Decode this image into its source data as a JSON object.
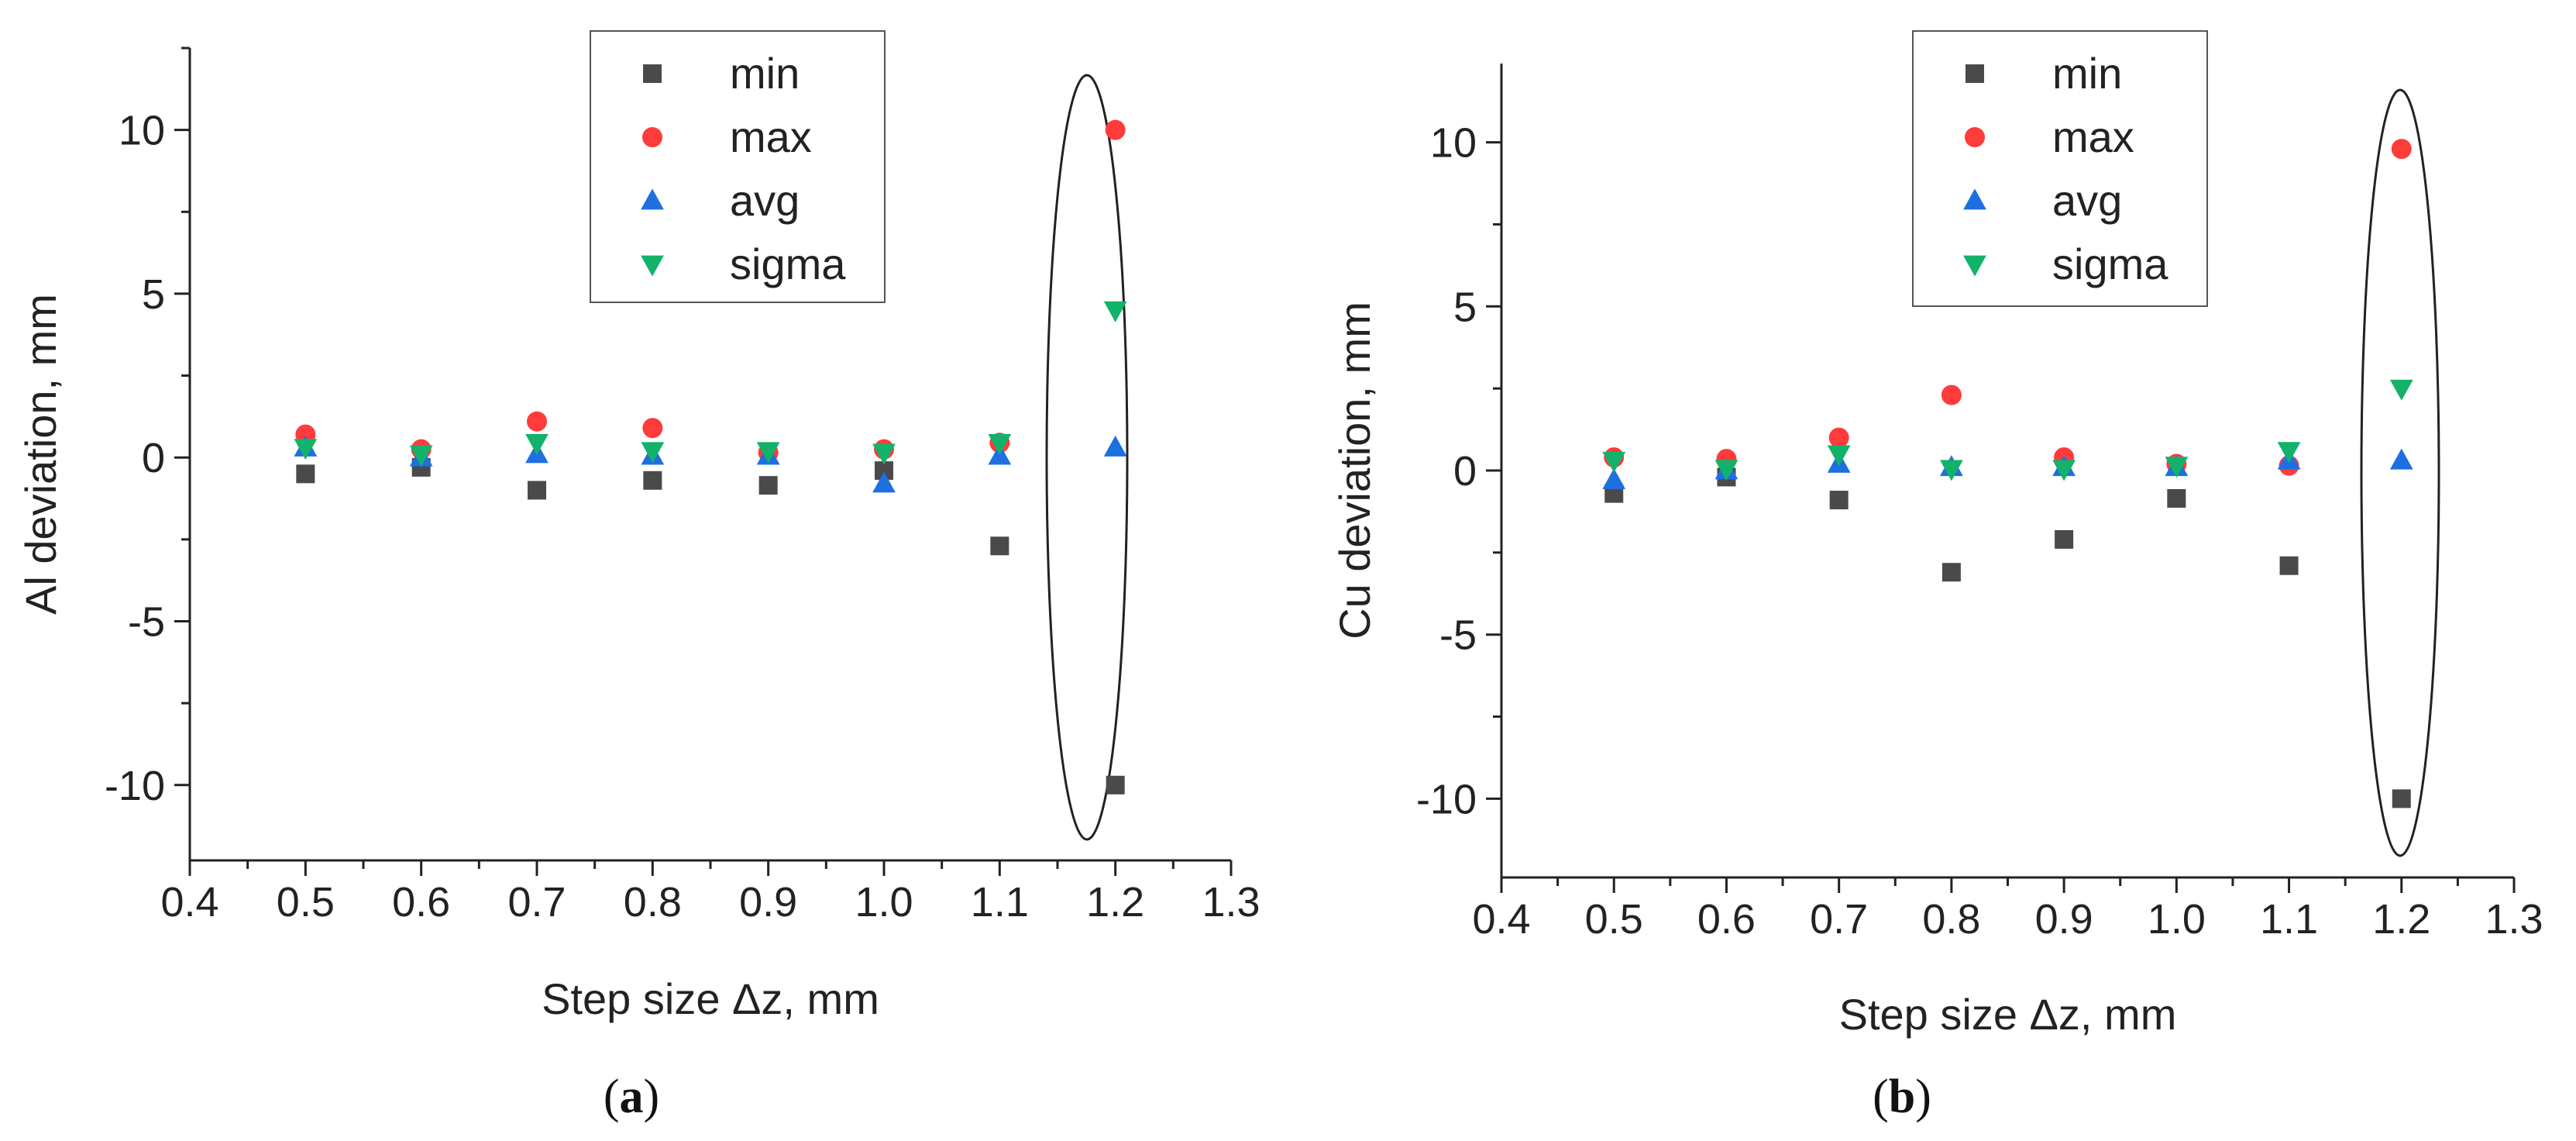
{
  "chart_data": [
    {
      "type": "scatter",
      "panel_label": "a",
      "title": "",
      "xlabel": "Step size Δz, mm",
      "ylabel": "Al deviation, mm",
      "xlim": [
        0.4,
        1.3
      ],
      "ylim": [
        -12.3,
        12.5
      ],
      "xticks": [
        "0.4",
        "0.5",
        "0.6",
        "0.7",
        "0.8",
        "0.9",
        "1.0",
        "1.1",
        "1.2",
        "1.3"
      ],
      "yticks": [
        "-10",
        "-5",
        "0",
        "5",
        "10"
      ],
      "legend_position": "top-center",
      "highlight": "ellipse around x = 1.2",
      "x": [
        0.5,
        0.6,
        0.7,
        0.8,
        0.9,
        1.0,
        1.1,
        1.2
      ],
      "series": [
        {
          "name": "min",
          "marker": "square",
          "color": "#4a4a4a",
          "values": [
            -0.5,
            -0.3,
            -1.0,
            -0.7,
            -0.85,
            -0.4,
            -2.7,
            -10.0
          ]
        },
        {
          "name": "max",
          "marker": "circle",
          "color": "#ff3b3b",
          "values": [
            0.7,
            0.25,
            1.1,
            0.9,
            0.15,
            0.25,
            0.45,
            10.0
          ]
        },
        {
          "name": "avg",
          "marker": "triangle-up",
          "color": "#1e6fe0",
          "values": [
            0.3,
            0.0,
            0.1,
            0.05,
            0.05,
            -0.8,
            0.05,
            0.3
          ]
        },
        {
          "name": "sigma",
          "marker": "triangle-down",
          "color": "#12b26a",
          "values": [
            0.3,
            0.1,
            0.45,
            0.2,
            0.2,
            0.15,
            0.45,
            4.5
          ]
        }
      ]
    },
    {
      "type": "scatter",
      "panel_label": "b",
      "title": "",
      "xlabel": "Step size Δz, mm",
      "ylabel": "Cu deviation, mm",
      "xlim": [
        0.4,
        1.3
      ],
      "ylim": [
        -12.4,
        12.4
      ],
      "xticks": [
        "0.4",
        "0.5",
        "0.6",
        "0.7",
        "0.8",
        "0.9",
        "1.0",
        "1.1",
        "1.2",
        "1.3"
      ],
      "yticks": [
        "-10",
        "-5",
        "0",
        "5",
        "10"
      ],
      "legend_position": "top-center",
      "highlight": "ellipse around x = 1.2",
      "x": [
        0.5,
        0.6,
        0.7,
        0.8,
        0.9,
        1.0,
        1.1,
        1.2
      ],
      "series": [
        {
          "name": "min",
          "marker": "square",
          "color": "#4a4a4a",
          "values": [
            -0.7,
            -0.2,
            -0.9,
            -3.1,
            -2.1,
            -0.85,
            -2.9,
            -10.0
          ]
        },
        {
          "name": "max",
          "marker": "circle",
          "color": "#ff3b3b",
          "values": [
            0.4,
            0.35,
            1.0,
            2.3,
            0.4,
            0.2,
            0.15,
            9.8
          ]
        },
        {
          "name": "avg",
          "marker": "triangle-up",
          "color": "#1e6fe0",
          "values": [
            -0.3,
            0.0,
            0.2,
            0.1,
            0.1,
            0.1,
            0.3,
            0.3
          ]
        },
        {
          "name": "sigma",
          "marker": "triangle-down",
          "color": "#12b26a",
          "values": [
            0.3,
            0.05,
            0.5,
            0.05,
            0.05,
            0.15,
            0.6,
            2.5
          ]
        }
      ]
    }
  ]
}
